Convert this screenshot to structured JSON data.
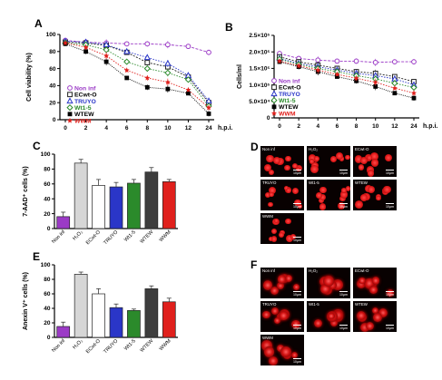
{
  "panels": {
    "A": "A",
    "B": "B",
    "C": "C",
    "D": "D",
    "E": "E",
    "F": "F"
  },
  "legend": [
    "Non inf",
    "ECwt-O",
    "TRUYO",
    "Wt1-5",
    "WTEW",
    "WWM"
  ],
  "colors": {
    "Non inf": "#9b3ac6",
    "ECwt-O": "#222222",
    "TRUYO": "#2a36c8",
    "Wt1-5": "#2b8a2b",
    "WTEW": "#000000",
    "WWM": "#e0201c",
    "H2O2": "#d6d6d6"
  },
  "chart_data": [
    {
      "id": "A",
      "type": "line",
      "xlabel": "h.p.i.",
      "ylabel": "Cell viability (%)",
      "ylim": [
        0,
        100
      ],
      "yticks": [
        0,
        20,
        40,
        60,
        80,
        100
      ],
      "x": [
        "0",
        "2",
        "4",
        "6",
        "8",
        "10",
        "12",
        "24"
      ],
      "series": [
        {
          "name": "Non inf",
          "values": [
            93,
            91,
            90,
            89,
            89,
            88,
            86,
            79
          ]
        },
        {
          "name": "ECwt-O",
          "values": [
            91,
            90,
            87,
            79,
            67,
            62,
            50,
            20
          ]
        },
        {
          "name": "TRUYO",
          "values": [
            92,
            91,
            88,
            80,
            73,
            66,
            52,
            22
          ]
        },
        {
          "name": "Wt1-5",
          "values": [
            90,
            88,
            82,
            68,
            60,
            55,
            47,
            16
          ]
        },
        {
          "name": "WTEW",
          "values": [
            89,
            80,
            68,
            49,
            38,
            36,
            31,
            7
          ]
        },
        {
          "name": "WWM",
          "values": [
            90,
            85,
            75,
            58,
            49,
            44,
            35,
            14
          ]
        }
      ]
    },
    {
      "id": "B",
      "type": "line",
      "xlabel": "h.p.i.",
      "ylabel": "Cells/ml",
      "ylim": [
        0,
        250000
      ],
      "yticks": [
        0,
        50000,
        100000,
        150000,
        200000,
        250000
      ],
      "ytick_labels": [
        "0",
        "5.0×10⁴",
        "1.0×10⁵",
        "1.5×10⁵",
        "2.0×10⁵",
        "2.5×10⁵"
      ],
      "x": [
        "0",
        "2",
        "4",
        "6",
        "8",
        "10",
        "12",
        "24"
      ],
      "series": [
        {
          "name": "Non inf",
          "values": [
            195000,
            180000,
            175000,
            172000,
            172000,
            168000,
            170000,
            170000
          ]
        },
        {
          "name": "ECwt-O",
          "values": [
            185000,
            170000,
            160000,
            150000,
            140000,
            135000,
            125000,
            110000
          ]
        },
        {
          "name": "TRUYO",
          "values": [
            180000,
            165000,
            155000,
            145000,
            135000,
            128000,
            118000,
            100000
          ]
        },
        {
          "name": "Wt1-5",
          "values": [
            178000,
            162000,
            150000,
            140000,
            128000,
            118000,
            105000,
            92000
          ]
        },
        {
          "name": "WTEW",
          "values": [
            170000,
            155000,
            140000,
            125000,
            112000,
            95000,
            75000,
            60000
          ]
        },
        {
          "name": "WWM",
          "values": [
            172000,
            158000,
            145000,
            132000,
            120000,
            108000,
            90000,
            75000
          ]
        }
      ]
    },
    {
      "id": "C",
      "type": "bar",
      "ylabel": "7-AAD⁺ cells (%)",
      "ylim": [
        0,
        100
      ],
      "yticks": [
        0,
        20,
        40,
        60,
        80,
        100
      ],
      "categories": [
        "Non inf",
        "H₂O₂",
        "ECwt-O",
        "TRUYO",
        "Wt1-5",
        "WTEW",
        "WWM"
      ],
      "values": [
        16,
        88,
        58,
        56,
        61,
        76,
        63
      ],
      "errors": [
        6,
        5,
        8,
        6,
        5,
        6,
        3
      ]
    },
    {
      "id": "E",
      "type": "bar",
      "ylabel": "Anexin V⁺ cells (%)",
      "ylim": [
        0,
        100
      ],
      "yticks": [
        0,
        20,
        40,
        60,
        80,
        100
      ],
      "categories": [
        "Non inf",
        "H₂O₂",
        "ECwt-O",
        "TRUYO",
        "Wt1-5",
        "WTEW",
        "WWM"
      ],
      "values": [
        15,
        87,
        60,
        41,
        37,
        67,
        49
      ],
      "errors": [
        6,
        3,
        7,
        5,
        2,
        4,
        5
      ]
    }
  ],
  "micrographs": {
    "D": [
      {
        "label": "Non inf",
        "scale": "10µm"
      },
      {
        "label": "H₂O₂",
        "scale": "10µm"
      },
      {
        "label": "ECwt-O",
        "scale": "10µm"
      },
      {
        "label": "TRUYO",
        "scale": "10µm"
      },
      {
        "label": "Wt1-5",
        "scale": "10µm"
      },
      {
        "label": "WTEW",
        "scale": "10µm"
      },
      {
        "label": "WWM",
        "scale": "10µm"
      }
    ],
    "F": [
      {
        "label": "Non inf",
        "scale": "10µm"
      },
      {
        "label": "H₂O₂",
        "scale": "10µm"
      },
      {
        "label": "ECwt-O",
        "scale": "10µm"
      },
      {
        "label": "TRUYO",
        "scale": "10µm"
      },
      {
        "label": "Wt1-5",
        "scale": "10µm"
      },
      {
        "label": "WTEW",
        "scale": "10µm"
      },
      {
        "label": "WWM",
        "scale": "10µm"
      }
    ]
  }
}
